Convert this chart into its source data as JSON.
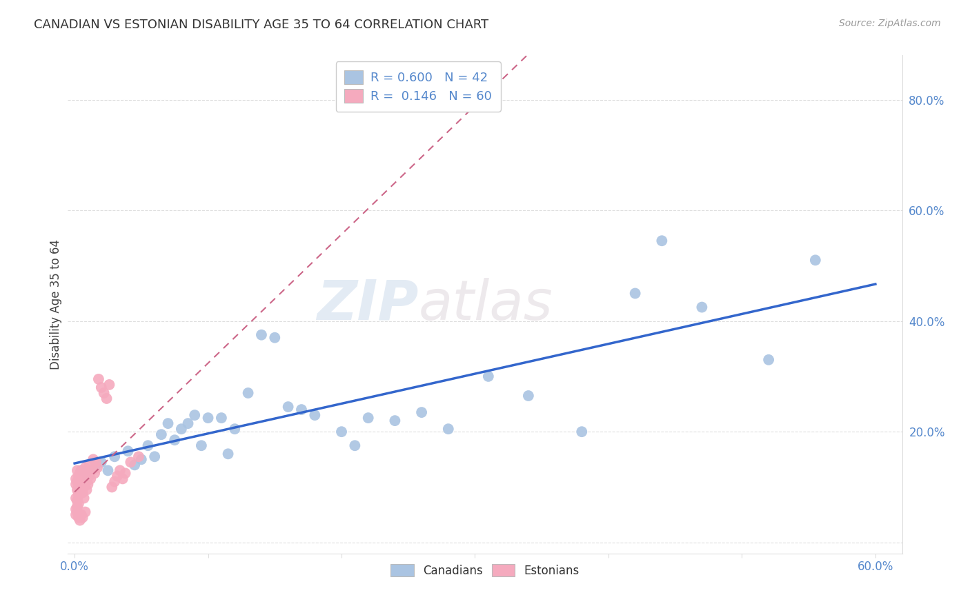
{
  "title": "CANADIAN VS ESTONIAN DISABILITY AGE 35 TO 64 CORRELATION CHART",
  "source_text": "Source: ZipAtlas.com",
  "ylabel": "Disability Age 35 to 64",
  "xlim": [
    -0.005,
    0.62
  ],
  "ylim": [
    -0.02,
    0.88
  ],
  "ytick_positions": [
    0.0,
    0.2,
    0.4,
    0.6,
    0.8
  ],
  "ytick_labels": [
    "",
    "20.0%",
    "40.0%",
    "60.0%",
    "80.0%"
  ],
  "xtick_positions": [
    0.0,
    0.1,
    0.2,
    0.3,
    0.4,
    0.5,
    0.6
  ],
  "xtick_labels": [
    "0.0%",
    "",
    "",
    "",
    "",
    "",
    "60.0%"
  ],
  "legend_r_canadian": "0.600",
  "legend_n_canadian": "42",
  "legend_r_estonian": "0.146",
  "legend_n_estonian": "60",
  "canadian_color": "#aac4e2",
  "estonian_color": "#f5aabe",
  "canadian_line_color": "#3366cc",
  "estonian_line_color": "#cc6688",
  "tick_color": "#5588cc",
  "grid_color": "#dddddd",
  "watermark_color": "#d8e4f0",
  "canadians_x": [
    0.005,
    0.01,
    0.015,
    0.02,
    0.025,
    0.03,
    0.04,
    0.045,
    0.05,
    0.055,
    0.06,
    0.065,
    0.07,
    0.075,
    0.08,
    0.085,
    0.09,
    0.095,
    0.1,
    0.11,
    0.115,
    0.12,
    0.13,
    0.14,
    0.15,
    0.16,
    0.17,
    0.18,
    0.2,
    0.21,
    0.22,
    0.24,
    0.26,
    0.28,
    0.31,
    0.34,
    0.38,
    0.42,
    0.44,
    0.47,
    0.52,
    0.555
  ],
  "canadians_y": [
    0.13,
    0.12,
    0.135,
    0.145,
    0.13,
    0.155,
    0.165,
    0.14,
    0.15,
    0.175,
    0.155,
    0.195,
    0.215,
    0.185,
    0.205,
    0.215,
    0.23,
    0.175,
    0.225,
    0.225,
    0.16,
    0.205,
    0.27,
    0.375,
    0.37,
    0.245,
    0.24,
    0.23,
    0.2,
    0.175,
    0.225,
    0.22,
    0.235,
    0.205,
    0.3,
    0.265,
    0.2,
    0.45,
    0.545,
    0.425,
    0.33,
    0.51
  ],
  "estonians_x": [
    0.001,
    0.001,
    0.001,
    0.002,
    0.002,
    0.002,
    0.002,
    0.003,
    0.003,
    0.003,
    0.003,
    0.004,
    0.004,
    0.004,
    0.005,
    0.005,
    0.005,
    0.006,
    0.006,
    0.006,
    0.007,
    0.007,
    0.007,
    0.008,
    0.008,
    0.009,
    0.009,
    0.01,
    0.01,
    0.011,
    0.011,
    0.012,
    0.013,
    0.014,
    0.015,
    0.016,
    0.017,
    0.018,
    0.02,
    0.022,
    0.024,
    0.026,
    0.028,
    0.03,
    0.032,
    0.034,
    0.036,
    0.038,
    0.042,
    0.048,
    0.001,
    0.001,
    0.002,
    0.002,
    0.003,
    0.003,
    0.004,
    0.005,
    0.006,
    0.008
  ],
  "estonians_y": [
    0.105,
    0.115,
    0.08,
    0.11,
    0.13,
    0.095,
    0.075,
    0.12,
    0.1,
    0.09,
    0.085,
    0.115,
    0.125,
    0.095,
    0.13,
    0.11,
    0.095,
    0.125,
    0.105,
    0.09,
    0.12,
    0.1,
    0.08,
    0.115,
    0.135,
    0.11,
    0.095,
    0.125,
    0.105,
    0.12,
    0.14,
    0.115,
    0.13,
    0.15,
    0.125,
    0.145,
    0.135,
    0.295,
    0.28,
    0.27,
    0.26,
    0.285,
    0.1,
    0.11,
    0.12,
    0.13,
    0.115,
    0.125,
    0.145,
    0.155,
    0.06,
    0.05,
    0.065,
    0.055,
    0.07,
    0.045,
    0.04,
    0.05,
    0.045,
    0.055
  ]
}
